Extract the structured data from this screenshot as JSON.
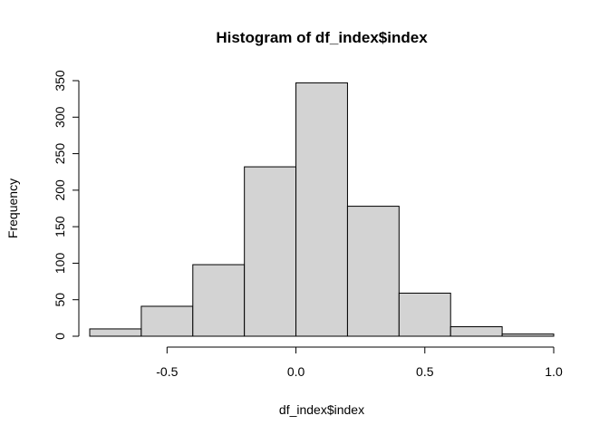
{
  "chart_data": {
    "type": "bar",
    "title": "Histogram of df_index$index",
    "xlabel": "df_index$index",
    "ylabel": "Frequency",
    "bin_edges": [
      -0.8,
      -0.6,
      -0.4,
      -0.2,
      0.0,
      0.2,
      0.4,
      0.6,
      0.8,
      1.0
    ],
    "values": [
      10,
      41,
      98,
      232,
      347,
      178,
      59,
      13,
      3
    ],
    "xlim": [
      -0.8,
      1.0
    ],
    "ylim": [
      0,
      350
    ],
    "x_ticks": [
      -0.5,
      0.0,
      0.5,
      1.0
    ],
    "x_tick_labels": [
      "-0.5",
      "0.0",
      "0.5",
      "1.0"
    ],
    "y_ticks": [
      0,
      50,
      100,
      150,
      200,
      250,
      300,
      350
    ],
    "y_tick_labels": [
      "0",
      "50",
      "100",
      "150",
      "200",
      "250",
      "300",
      "350"
    ],
    "bar_fill": "#d3d3d3",
    "bar_stroke": "#000000",
    "grid": false
  }
}
